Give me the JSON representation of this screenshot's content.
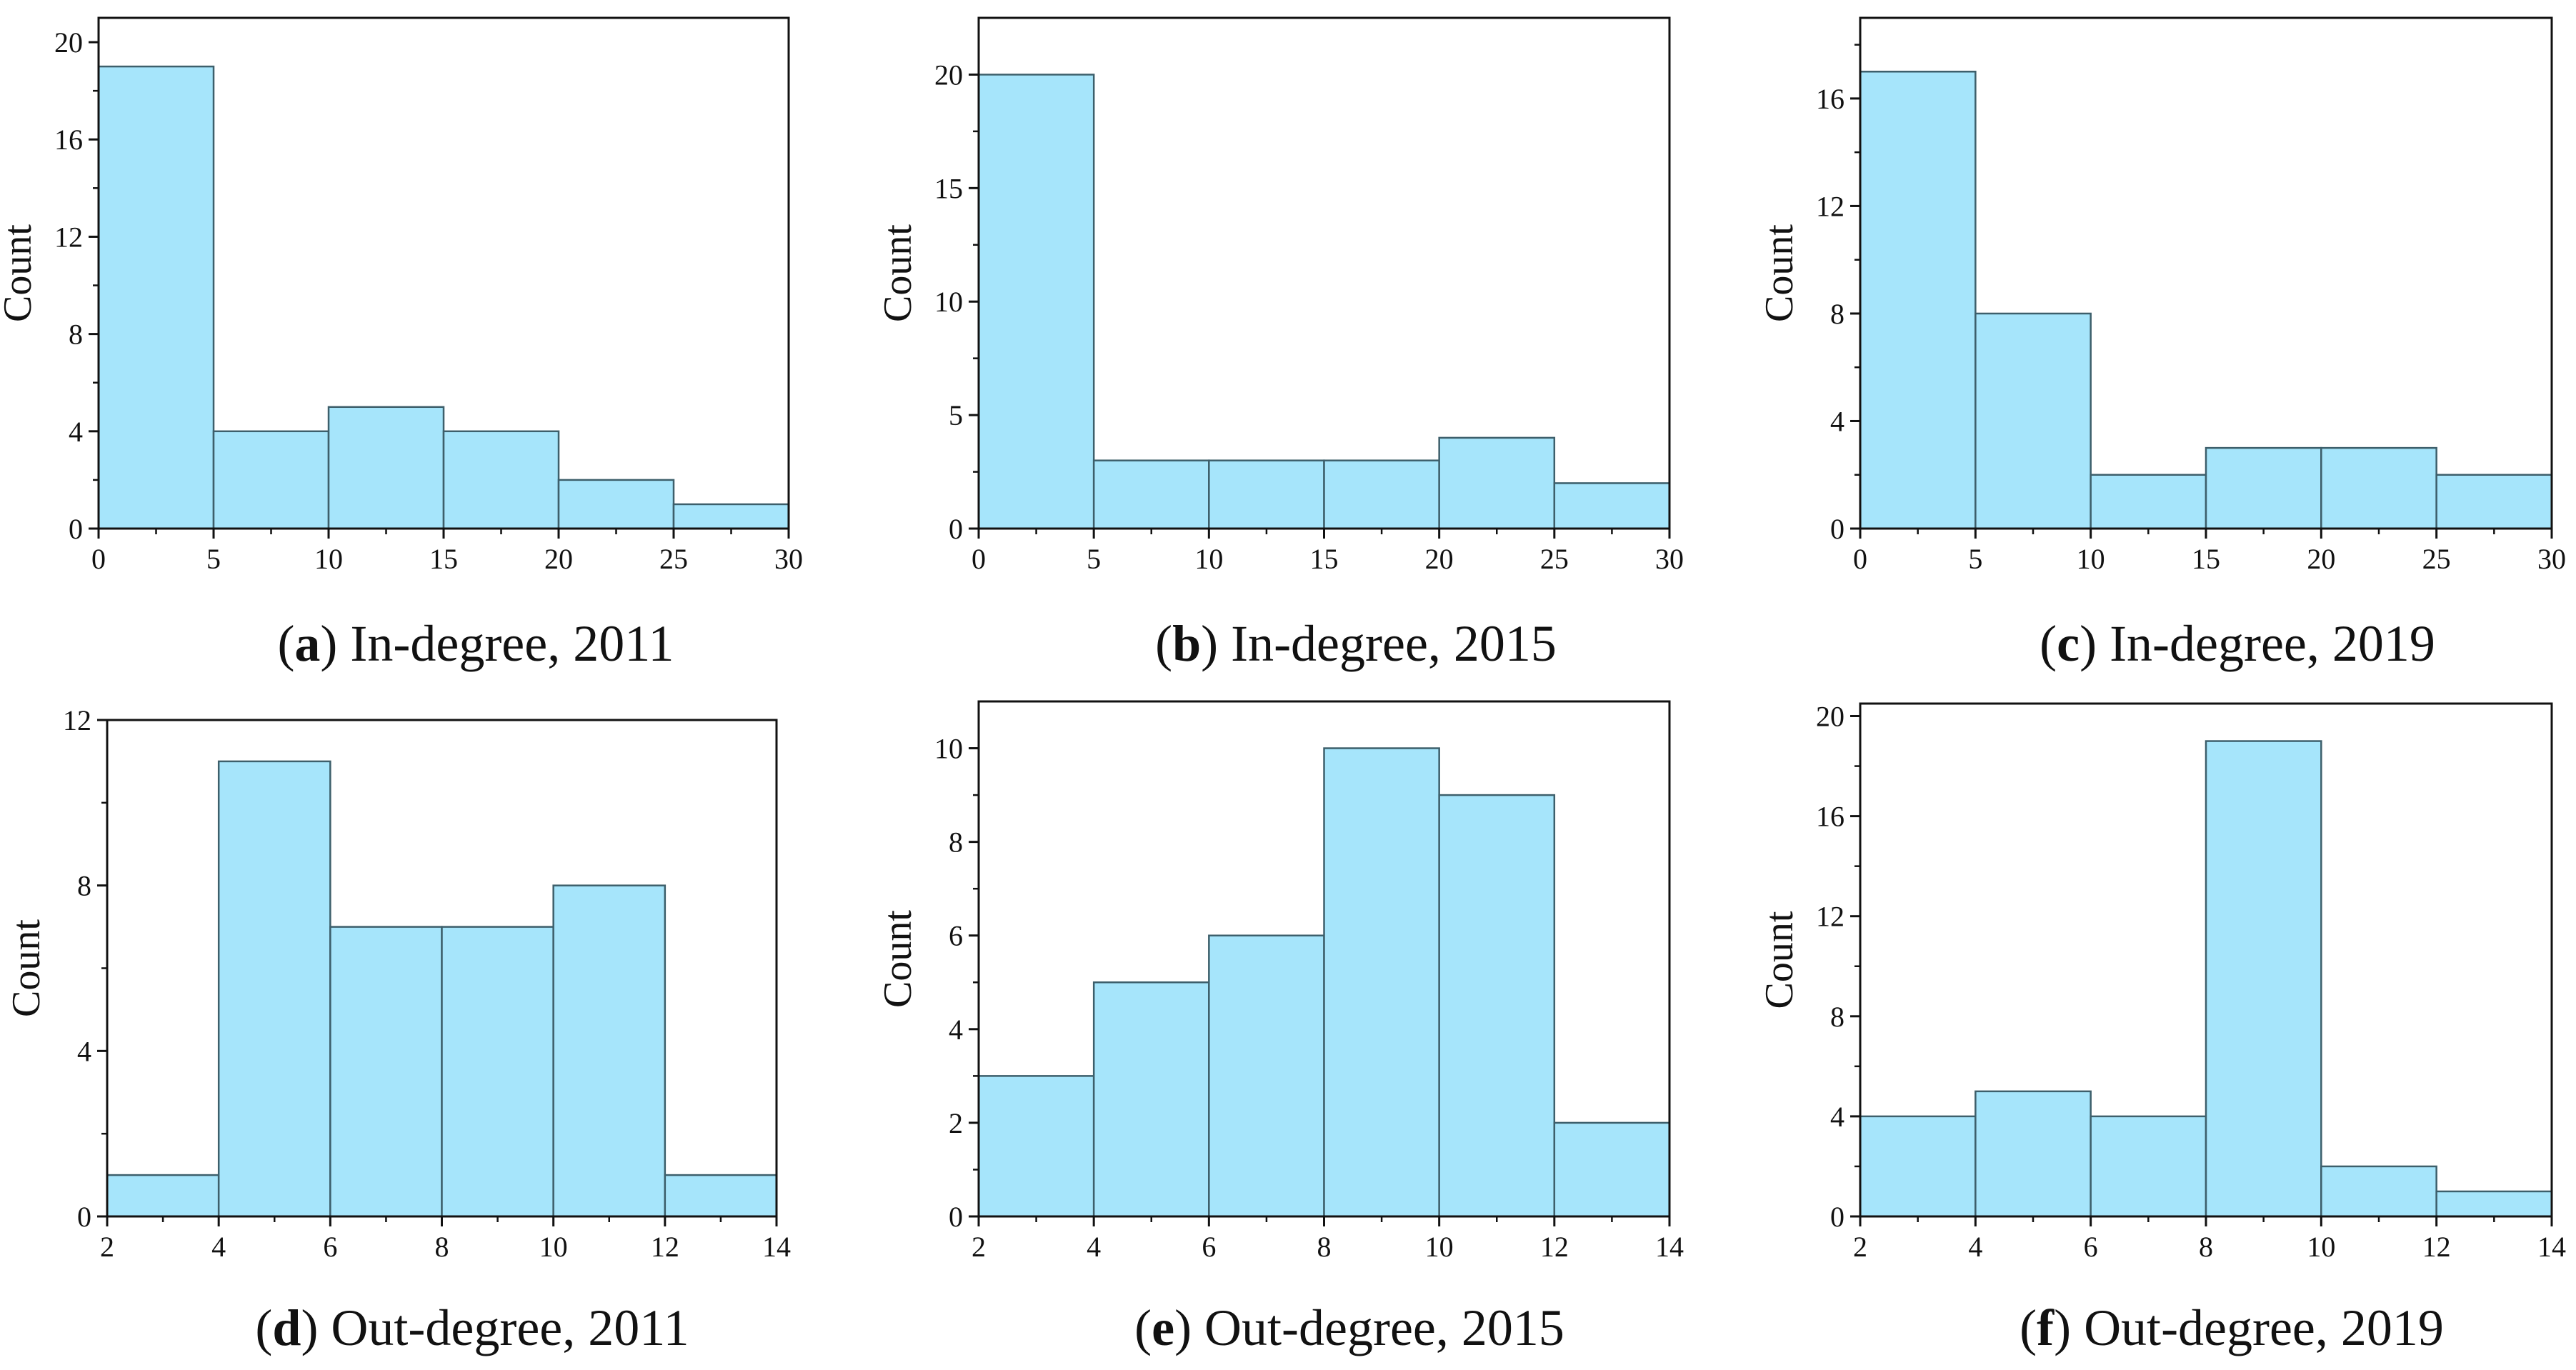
{
  "bar_color": "#a6e5fb",
  "edge_color": "#3d5f6b",
  "chart_data": [
    {
      "id": "a",
      "type": "bar",
      "letter": "a",
      "caption_text": " In-degree, 2011",
      "xlabel": "",
      "ylabel": "Count",
      "bins": [
        [
          0,
          5
        ],
        [
          5,
          10
        ],
        [
          10,
          15
        ],
        [
          15,
          20
        ],
        [
          20,
          25
        ],
        [
          25,
          30
        ]
      ],
      "values": [
        19,
        4,
        5,
        4,
        2,
        1
      ],
      "xlim": [
        0,
        30
      ],
      "ylim": [
        0,
        21
      ],
      "xticks": [
        0,
        5,
        10,
        15,
        20,
        25,
        30
      ],
      "yticks": [
        0,
        4,
        8,
        12,
        16,
        20
      ],
      "yminor": [
        2,
        6,
        10,
        14,
        18
      ]
    },
    {
      "id": "b",
      "type": "bar",
      "letter": "b",
      "caption_text": " In-degree, 2015",
      "xlabel": "",
      "ylabel": "Count",
      "bins": [
        [
          0,
          5
        ],
        [
          5,
          10
        ],
        [
          10,
          15
        ],
        [
          15,
          20
        ],
        [
          20,
          25
        ],
        [
          25,
          30
        ]
      ],
      "values": [
        20,
        3,
        3,
        3,
        4,
        2
      ],
      "xlim": [
        0,
        30
      ],
      "ylim": [
        0,
        22.5
      ],
      "xticks": [
        0,
        5,
        10,
        15,
        20,
        25,
        30
      ],
      "yticks": [
        0,
        5,
        10,
        15,
        20
      ],
      "yminor": [
        2.5,
        7.5,
        12.5,
        17.5
      ]
    },
    {
      "id": "c",
      "type": "bar",
      "letter": "c",
      "caption_text": " In-degree, 2019",
      "xlabel": "",
      "ylabel": "Count",
      "bins": [
        [
          0,
          5
        ],
        [
          5,
          10
        ],
        [
          10,
          15
        ],
        [
          15,
          20
        ],
        [
          20,
          25
        ],
        [
          25,
          30
        ]
      ],
      "values": [
        17,
        8,
        2,
        3,
        3,
        2
      ],
      "xlim": [
        0,
        30
      ],
      "ylim": [
        0,
        19
      ],
      "xticks": [
        0,
        5,
        10,
        15,
        20,
        25,
        30
      ],
      "yticks": [
        0,
        4,
        8,
        12,
        16
      ],
      "yminor": [
        2,
        6,
        10,
        14,
        18
      ]
    },
    {
      "id": "d",
      "type": "bar",
      "letter": "d",
      "caption_text": " Out-degree, 2011",
      "xlabel": "",
      "ylabel": "Count",
      "bins": [
        [
          2,
          4
        ],
        [
          4,
          6
        ],
        [
          6,
          8
        ],
        [
          8,
          10
        ],
        [
          10,
          12
        ],
        [
          12,
          14
        ]
      ],
      "values": [
        1,
        11,
        7,
        7,
        8,
        1
      ],
      "xlim": [
        2,
        14
      ],
      "ylim": [
        0,
        12
      ],
      "xticks": [
        2,
        4,
        6,
        8,
        10,
        12,
        14
      ],
      "yticks": [
        0,
        4,
        8,
        12
      ],
      "yminor": [
        2,
        6,
        10
      ]
    },
    {
      "id": "e",
      "type": "bar",
      "letter": "e",
      "caption_text": " Out-degree, 2015",
      "xlabel": "",
      "ylabel": "Count",
      "bins": [
        [
          2,
          4
        ],
        [
          4,
          6
        ],
        [
          6,
          8
        ],
        [
          8,
          10
        ],
        [
          10,
          12
        ],
        [
          12,
          14
        ]
      ],
      "values": [
        3,
        5,
        6,
        10,
        9,
        2
      ],
      "xlim": [
        2,
        14
      ],
      "ylim": [
        0,
        11
      ],
      "xticks": [
        2,
        4,
        6,
        8,
        10,
        12,
        14
      ],
      "yticks": [
        0,
        2,
        4,
        6,
        8,
        10
      ],
      "yminor": [
        1,
        3,
        5,
        7,
        9
      ]
    },
    {
      "id": "f",
      "type": "bar",
      "letter": "f",
      "caption_text": " Out-degree, 2019",
      "xlabel": "",
      "ylabel": "Count",
      "bins": [
        [
          2,
          4
        ],
        [
          4,
          6
        ],
        [
          6,
          8
        ],
        [
          8,
          10
        ],
        [
          10,
          12
        ],
        [
          12,
          14
        ]
      ],
      "values": [
        4,
        5,
        4,
        19,
        2,
        1
      ],
      "xlim": [
        2,
        14
      ],
      "ylim": [
        0,
        20.5
      ],
      "xticks": [
        2,
        4,
        6,
        8,
        10,
        12,
        14
      ],
      "yticks": [
        0,
        4,
        8,
        12,
        16,
        20
      ],
      "yminor": [
        2,
        6,
        10,
        14,
        18
      ]
    }
  ]
}
